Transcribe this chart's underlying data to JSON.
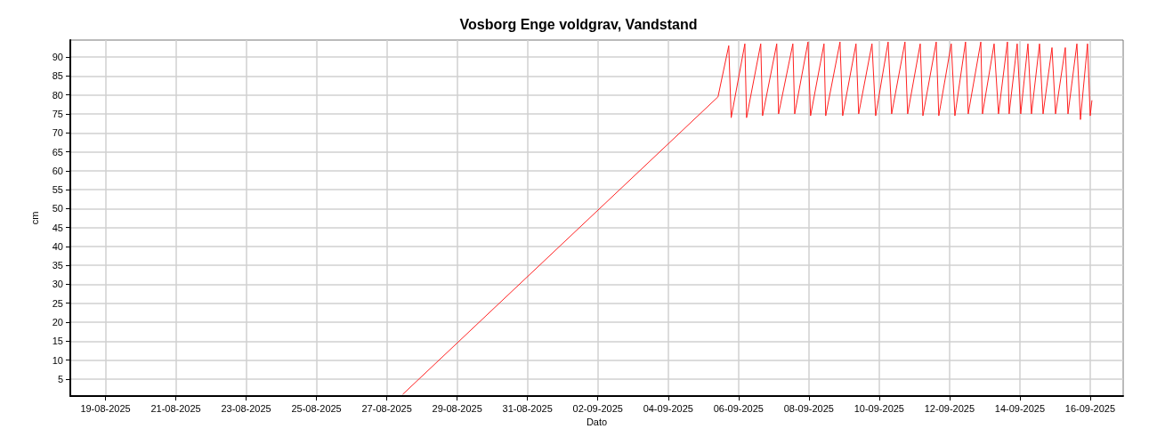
{
  "chart_data": {
    "type": "line",
    "title": "Vosborg Enge voldgrav, Vandstand",
    "xlabel": "Dato",
    "ylabel": "cm",
    "series": [
      {
        "color": "#ff2020",
        "x": [
          "2025-08-27T11:00",
          "2025-09-05T10:00",
          "2025-09-05T17:20",
          "2025-09-05T19:00",
          "2025-09-06T04:20",
          "2025-09-06T05:30",
          "2025-09-06T15:10",
          "2025-09-06T16:25",
          "2025-09-07T02:05",
          "2025-09-07T03:20",
          "2025-09-07T13:05",
          "2025-09-07T14:20",
          "2025-09-07T23:25",
          "2025-09-08T01:10",
          "2025-09-08T10:20",
          "2025-09-08T11:30",
          "2025-09-08T21:15",
          "2025-09-08T23:05",
          "2025-09-09T08:10",
          "2025-09-09T10:00",
          "2025-09-09T19:05",
          "2025-09-09T21:35",
          "2025-09-10T06:05",
          "2025-09-10T08:30",
          "2025-09-10T17:35",
          "2025-09-10T19:25",
          "2025-09-11T04:00",
          "2025-09-11T05:50",
          "2025-09-11T14:55",
          "2025-09-11T16:40",
          "2025-09-12T01:10",
          "2025-09-12T03:40",
          "2025-09-12T10:55",
          "2025-09-12T12:45",
          "2025-09-12T21:20",
          "2025-09-12T22:30",
          "2025-09-13T06:25",
          "2025-09-13T09:25",
          "2025-09-13T15:30",
          "2025-09-13T16:40",
          "2025-09-13T22:10",
          "2025-09-14T00:35",
          "2025-09-14T05:30",
          "2025-09-14T07:55",
          "2025-09-14T13:25",
          "2025-09-14T15:50",
          "2025-09-14T21:55",
          "2025-09-15T00:20",
          "2025-09-15T07:00",
          "2025-09-15T08:50",
          "2025-09-15T14:55",
          "2025-09-15T17:20",
          "2025-09-15T22:10",
          "2025-09-16T00:00",
          "2025-09-16T01:10"
        ],
        "values": [
          1,
          79.5,
          93,
          74,
          93.5,
          74,
          93.5,
          74.5,
          93.5,
          75,
          93.5,
          75,
          94,
          74.5,
          93.5,
          74.5,
          94,
          74.5,
          93.5,
          75,
          93.5,
          74.5,
          94,
          75,
          94,
          75,
          93.5,
          74.5,
          94,
          74.5,
          93.5,
          74.5,
          94,
          75,
          94,
          75,
          93.5,
          75,
          94,
          75,
          93.5,
          75,
          93.5,
          75,
          93.5,
          75,
          92.5,
          75,
          92.5,
          75,
          93.5,
          73.5,
          93.5,
          74.5,
          78.5
        ]
      }
    ],
    "xlim": [
      "2025-08-18T00:00",
      "2025-09-16T22:30"
    ],
    "xticks": [
      {
        "value": "2025-08-19",
        "label": "19-08-2025"
      },
      {
        "value": "2025-08-21",
        "label": "21-08-2025"
      },
      {
        "value": "2025-08-23",
        "label": "23-08-2025"
      },
      {
        "value": "2025-08-25",
        "label": "25-08-2025"
      },
      {
        "value": "2025-08-27",
        "label": "27-08-2025"
      },
      {
        "value": "2025-08-29",
        "label": "29-08-2025"
      },
      {
        "value": "2025-08-31",
        "label": "31-08-2025"
      },
      {
        "value": "2025-09-02",
        "label": "02-09-2025"
      },
      {
        "value": "2025-09-04",
        "label": "04-09-2025"
      },
      {
        "value": "2025-09-06",
        "label": "06-09-2025"
      },
      {
        "value": "2025-09-08",
        "label": "08-09-2025"
      },
      {
        "value": "2025-09-10",
        "label": "10-09-2025"
      },
      {
        "value": "2025-09-12",
        "label": "12-09-2025"
      },
      {
        "value": "2025-09-14",
        "label": "14-09-2025"
      },
      {
        "value": "2025-09-16",
        "label": "16-09-2025"
      }
    ],
    "ylim": [
      0.5,
      94.5
    ],
    "yticks": [
      5,
      10,
      15,
      20,
      25,
      30,
      35,
      40,
      45,
      50,
      55,
      60,
      65,
      70,
      75,
      80,
      85,
      90
    ],
    "grid": true,
    "marker": "none",
    "line_style": "solid"
  }
}
